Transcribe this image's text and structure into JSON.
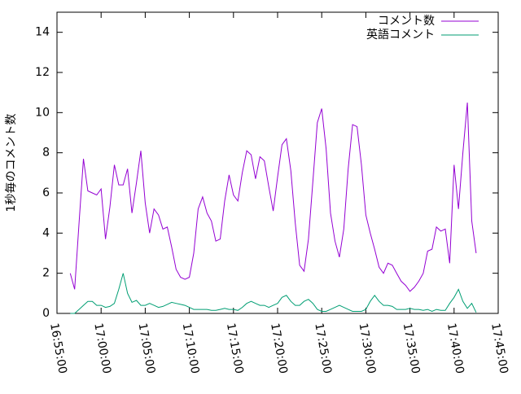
{
  "chart_data": {
    "type": "line",
    "ylabel": "1秒毎のコメント数",
    "x": [
      "16:56:30",
      "16:57:00",
      "16:57:30",
      "16:58:00",
      "16:58:30",
      "16:59:00",
      "16:59:30",
      "17:00:00",
      "17:00:30",
      "17:01:00",
      "17:01:30",
      "17:02:00",
      "17:02:30",
      "17:03:00",
      "17:03:30",
      "17:04:00",
      "17:04:30",
      "17:05:00",
      "17:05:30",
      "17:06:00",
      "17:06:30",
      "17:07:00",
      "17:07:30",
      "17:08:00",
      "17:08:30",
      "17:09:00",
      "17:09:30",
      "17:10:00",
      "17:10:30",
      "17:11:00",
      "17:11:30",
      "17:12:00",
      "17:12:30",
      "17:13:00",
      "17:13:30",
      "17:14:00",
      "17:14:30",
      "17:15:00",
      "17:15:30",
      "17:16:00",
      "17:16:30",
      "17:17:00",
      "17:17:30",
      "17:18:00",
      "17:18:30",
      "17:19:00",
      "17:19:30",
      "17:20:00",
      "17:20:30",
      "17:21:00",
      "17:21:30",
      "17:22:00",
      "17:22:30",
      "17:23:00",
      "17:23:30",
      "17:24:00",
      "17:24:30",
      "17:25:00",
      "17:25:30",
      "17:26:00",
      "17:26:30",
      "17:27:00",
      "17:27:30",
      "17:28:00",
      "17:28:30",
      "17:29:00",
      "17:29:30",
      "17:30:00",
      "17:30:30",
      "17:31:00",
      "17:31:30",
      "17:32:00",
      "17:32:30",
      "17:33:00",
      "17:33:30",
      "17:34:00",
      "17:34:30",
      "17:35:00",
      "17:35:30",
      "17:36:00",
      "17:36:30",
      "17:37:00",
      "17:37:30",
      "17:38:00",
      "17:38:30",
      "17:39:00",
      "17:39:30",
      "17:40:00",
      "17:40:30",
      "17:41:00",
      "17:41:30",
      "17:42:00",
      "17:42:30"
    ],
    "series": [
      {
        "name": "コメント数",
        "color": "#9400d3",
        "values": [
          2.0,
          1.2,
          4.5,
          7.7,
          6.1,
          6.0,
          5.9,
          6.2,
          3.7,
          5.3,
          7.4,
          6.4,
          6.4,
          7.2,
          5.0,
          6.5,
          8.1,
          5.5,
          4.0,
          5.2,
          4.9,
          4.2,
          4.3,
          3.3,
          2.2,
          1.8,
          1.7,
          1.8,
          3.0,
          5.2,
          5.8,
          5.0,
          4.6,
          3.6,
          3.7,
          5.6,
          6.9,
          5.9,
          5.6,
          7.0,
          8.1,
          7.9,
          6.7,
          7.8,
          7.6,
          6.3,
          5.1,
          6.8,
          8.4,
          8.7,
          7.1,
          4.5,
          2.4,
          2.1,
          3.7,
          6.6,
          9.5,
          10.2,
          8.2,
          5.0,
          3.6,
          2.8,
          4.2,
          7.2,
          9.4,
          9.3,
          7.4,
          4.9,
          4.0,
          3.2,
          2.3,
          2.0,
          2.5,
          2.4,
          2.0,
          1.6,
          1.4,
          1.1,
          1.3,
          1.6,
          2.0,
          3.1,
          3.2,
          4.3,
          4.1,
          4.2,
          2.5,
          7.4,
          5.2,
          8.0,
          10.5,
          4.6,
          3.0
        ]
      },
      {
        "name": "英語コメント",
        "color": "#009e73",
        "values": [
          0,
          0,
          0.2,
          0.4,
          0.6,
          0.6,
          0.4,
          0.4,
          0.3,
          0.35,
          0.5,
          1.2,
          2.0,
          1.0,
          0.55,
          0.65,
          0.4,
          0.4,
          0.5,
          0.4,
          0.3,
          0.35,
          0.45,
          0.55,
          0.5,
          0.45,
          0.4,
          0.3,
          0.2,
          0.2,
          0.2,
          0.2,
          0.15,
          0.15,
          0.2,
          0.25,
          0.2,
          0.2,
          0.15,
          0.3,
          0.5,
          0.6,
          0.5,
          0.4,
          0.4,
          0.3,
          0.4,
          0.5,
          0.8,
          0.9,
          0.6,
          0.4,
          0.4,
          0.6,
          0.7,
          0.5,
          0.2,
          0.1,
          0.1,
          0.2,
          0.3,
          0.4,
          0.3,
          0.2,
          0.1,
          0.1,
          0.1,
          0.2,
          0.6,
          0.9,
          0.6,
          0.4,
          0.4,
          0.35,
          0.2,
          0.2,
          0.2,
          0.25,
          0.2,
          0.2,
          0.15,
          0.2,
          0.1,
          0.2,
          0.15,
          0.15,
          0.5,
          0.8,
          1.2,
          0.6,
          0.25,
          0.5,
          0.05
        ]
      }
    ],
    "xlim": [
      "16:55:00",
      "17:45:00"
    ],
    "xticks": [
      "16:55:00",
      "17:00:00",
      "17:05:00",
      "17:10:00",
      "17:15:00",
      "17:20:00",
      "17:25:00",
      "17:30:00",
      "17:35:00",
      "17:40:00",
      "17:45:00"
    ],
    "ylim": [
      0,
      15
    ],
    "yticks": [
      0,
      2,
      4,
      6,
      8,
      10,
      12,
      14
    ],
    "legend": "top-right"
  }
}
